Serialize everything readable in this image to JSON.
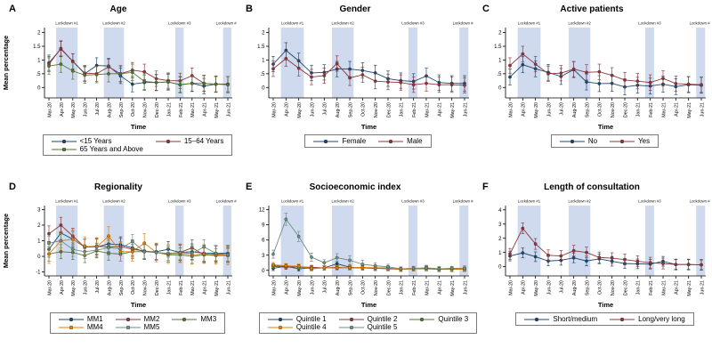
{
  "figure": {
    "x_axis_label": "Time",
    "y_axis_label": "Mean percentage",
    "months": [
      "Mar-20",
      "Apr-20",
      "May-20",
      "Jun-20",
      "Jul-20",
      "Aug-20",
      "Sep-20",
      "Oct-20",
      "Nov-20",
      "Dec-20",
      "Jan-21",
      "Feb-21",
      "Mar-21",
      "Apr-21",
      "May-21",
      "Jun-21"
    ],
    "lockdowns": [
      {
        "label": "Lockdown #1",
        "from": 0.6,
        "to": 2.4
      },
      {
        "label": "Lockdown #2",
        "from": 4.6,
        "to": 6.3
      },
      {
        "label": "Lockdown #3",
        "from": 10.6,
        "to": 11.3
      },
      {
        "label": "Lockdown #4",
        "from": 14.6,
        "to": 15.3
      }
    ],
    "band_color": "#cfdaee",
    "axis_color": "#000000",
    "palette": {
      "navy": "#1a476f",
      "maroon": "#90353b",
      "olive": "#55752f",
      "orange": "#e37e00",
      "teal": "#6e8e84"
    }
  },
  "chart_data": [
    {
      "type": "line",
      "panel_letter": "A",
      "title": "Age",
      "xlabel": "Time",
      "ylabel": "Mean percentage",
      "ylim": [
        -0.38,
        2.18
      ],
      "yticks": [
        0,
        0.5,
        1,
        1.5,
        2
      ],
      "ytick_labels": [
        "0",
        ".5",
        "1",
        "1.5",
        "2"
      ],
      "legend_columns": 2,
      "series": [
        {
          "name": "<15 Years",
          "color": "#1a476f",
          "err": 0.28,
          "values": [
            0.9,
            1.4,
            0.95,
            0.5,
            0.8,
            0.78,
            0.42,
            0.12,
            0.18,
            0.18,
            0.2,
            0.1,
            0.15,
            0.05,
            0.12,
            0.12
          ]
        },
        {
          "name": "15–64 Years",
          "color": "#90353b",
          "err": 0.28,
          "values": [
            0.85,
            1.42,
            0.95,
            0.52,
            0.5,
            0.75,
            0.5,
            0.63,
            0.57,
            0.32,
            0.25,
            0.24,
            0.43,
            0.15,
            0.12,
            0.12
          ]
        },
        {
          "name": "65 Years and Above",
          "color": "#55752f",
          "err": 0.3,
          "values": [
            0.78,
            0.85,
            0.6,
            0.45,
            0.47,
            0.5,
            0.5,
            0.55,
            0.22,
            0.18,
            0.2,
            0.1,
            0.15,
            0.15,
            0.12,
            0.1
          ]
        }
      ]
    },
    {
      "type": "line",
      "panel_letter": "B",
      "title": "Gender",
      "xlabel": "Time",
      "ylabel": "",
      "ylim": [
        -0.38,
        2.18
      ],
      "yticks": [
        0,
        0.5,
        1,
        1.5,
        2
      ],
      "ytick_labels": [
        "0",
        ".5",
        "1",
        "1.5",
        "2"
      ],
      "legend_columns": 2,
      "series": [
        {
          "name": "Female",
          "color": "#1a476f",
          "err": 0.28,
          "values": [
            0.85,
            1.35,
            0.97,
            0.53,
            0.55,
            0.67,
            0.67,
            0.62,
            0.53,
            0.32,
            0.25,
            0.22,
            0.42,
            0.18,
            0.15,
            0.15
          ]
        },
        {
          "name": "Male",
          "color": "#90353b",
          "err": 0.28,
          "values": [
            0.68,
            1.05,
            0.7,
            0.38,
            0.43,
            0.87,
            0.35,
            0.46,
            0.23,
            0.2,
            0.18,
            0.1,
            0.15,
            0.1,
            0.1,
            0.08
          ]
        }
      ]
    },
    {
      "type": "line",
      "panel_letter": "C",
      "title": "Active patients",
      "xlabel": "Time",
      "ylabel": "",
      "ylim": [
        -0.38,
        2.18
      ],
      "yticks": [
        0,
        0.5,
        1,
        1.5,
        2
      ],
      "ytick_labels": [
        "0",
        ".5",
        "1",
        "1.5",
        "2"
      ],
      "legend_columns": 2,
      "series": [
        {
          "name": "No",
          "color": "#1a476f",
          "err": 0.29,
          "values": [
            0.38,
            0.83,
            0.68,
            0.55,
            0.4,
            0.65,
            0.2,
            0.14,
            0.15,
            0.02,
            0.08,
            0.05,
            0.12,
            0.03,
            0.1,
            0.08
          ]
        },
        {
          "name": "Yes",
          "color": "#90353b",
          "err": 0.28,
          "values": [
            0.8,
            1.22,
            0.85,
            0.5,
            0.52,
            0.67,
            0.55,
            0.57,
            0.44,
            0.27,
            0.23,
            0.18,
            0.33,
            0.14,
            0.12,
            0.1
          ]
        }
      ]
    },
    {
      "type": "line",
      "panel_letter": "D",
      "title": "Regionality",
      "xlabel": "Time",
      "ylabel": "Mean percentage",
      "ylim": [
        -1.25,
        3.25
      ],
      "yticks": [
        -1,
        0,
        1,
        2,
        3
      ],
      "ytick_labels": [
        "-1",
        "0",
        "1",
        "2",
        "3"
      ],
      "legend_columns": 3,
      "series": [
        {
          "name": "MM1",
          "color": "#1a476f",
          "err": 0.5,
          "values": [
            0.45,
            1.5,
            1.1,
            0.6,
            0.6,
            0.8,
            0.75,
            0.55,
            0.3,
            0.3,
            0.45,
            0.25,
            0.3,
            0.2,
            0.2,
            0.2
          ]
        },
        {
          "name": "MM2",
          "color": "#90353b",
          "err": 0.5,
          "values": [
            1.45,
            2.0,
            1.3,
            0.6,
            0.65,
            0.6,
            0.65,
            0.45,
            0.35,
            0.25,
            0.15,
            0.25,
            0.55,
            0.1,
            0.15,
            0.1
          ]
        },
        {
          "name": "MM3",
          "color": "#55752f",
          "err": 0.45,
          "values": [
            0.15,
            0.3,
            0.25,
            0.05,
            0.35,
            0.2,
            0.15,
            0.3,
            0.3,
            0.25,
            0.1,
            0.1,
            0.0,
            0.1,
            0.05,
            0.05
          ]
        },
        {
          "name": "MM4",
          "color": "#e37e00",
          "err": 0.6,
          "values": [
            0.15,
            1.0,
            1.1,
            0.65,
            0.6,
            1.3,
            0.3,
            0.3,
            0.85,
            0.25,
            0.15,
            0.2,
            0.1,
            0.15,
            0.1,
            0.05
          ]
        },
        {
          "name": "MM5",
          "color": "#6e8e84",
          "err": 0.45,
          "values": [
            0.85,
            1.0,
            0.45,
            0.3,
            0.4,
            0.55,
            0.5,
            0.95,
            0.3,
            0.25,
            0.2,
            0.25,
            0.2,
            0.6,
            0.2,
            0.1
          ]
        }
      ]
    },
    {
      "type": "line",
      "panel_letter": "E",
      "title": "Socioeconomic index",
      "xlabel": "Time",
      "ylabel": "",
      "ylim": [
        -1.1,
        12.8
      ],
      "yticks": [
        0,
        3,
        6,
        9,
        12
      ],
      "ytick_labels": [
        "0",
        "3",
        "6",
        "9",
        "12"
      ],
      "legend_columns": 3,
      "series": [
        {
          "name": "Quintile 1",
          "color": "#1a476f",
          "err": 0.45,
          "values": [
            0.4,
            0.8,
            0.3,
            0.5,
            0.5,
            1.3,
            0.6,
            0.5,
            0.4,
            0.4,
            0.2,
            0.3,
            0.4,
            0.2,
            0.2,
            0.2
          ]
        },
        {
          "name": "Quintile 2",
          "color": "#90353b",
          "err": 0.4,
          "values": [
            0.8,
            0.6,
            0.7,
            0.6,
            0.5,
            0.6,
            0.5,
            0.5,
            0.4,
            0.3,
            0.2,
            0.3,
            0.4,
            0.2,
            0.2,
            0.2
          ]
        },
        {
          "name": "Quintile 3",
          "color": "#55752f",
          "err": 0.4,
          "values": [
            0.9,
            0.8,
            0.7,
            0.3,
            0.5,
            0.5,
            0.5,
            0.5,
            0.5,
            0.5,
            0.2,
            0.3,
            0.3,
            0.2,
            0.2,
            0.3
          ]
        },
        {
          "name": "Quintile 4",
          "color": "#e37e00",
          "err": 0.45,
          "values": [
            1.1,
            0.9,
            0.8,
            0.4,
            0.5,
            0.5,
            0.5,
            0.6,
            0.5,
            0.4,
            0.2,
            0.3,
            0.5,
            0.3,
            0.3,
            0.2
          ]
        },
        {
          "name": "Quintile 5",
          "color": "#6e8e84",
          "err": [
            0.8,
            1.2,
            1.0,
            0.8,
            0.6,
            0.8,
            0.9,
            0.8,
            0.6,
            0.5,
            0.4,
            0.4,
            0.5,
            0.4,
            0.4,
            0.5
          ],
          "values": [
            3.2,
            10.1,
            6.7,
            2.6,
            1.5,
            2.5,
            2.0,
            1.2,
            0.9,
            0.7,
            0.3,
            0.4,
            0.5,
            0.3,
            0.4,
            0.4
          ]
        }
      ]
    },
    {
      "type": "line",
      "panel_letter": "F",
      "title": "Length of consultation",
      "xlabel": "Time",
      "ylabel": "",
      "ylim": [
        -0.65,
        4.3
      ],
      "yticks": [
        0,
        1,
        2,
        3,
        4
      ],
      "ytick_labels": [
        "0",
        "1",
        "2",
        "3",
        "4"
      ],
      "legend_columns": 2,
      "series": [
        {
          "name": "Short/medium",
          "color": "#1a476f",
          "err": 0.34,
          "values": [
            0.75,
            0.97,
            0.7,
            0.4,
            0.45,
            0.62,
            0.4,
            0.55,
            0.38,
            0.22,
            0.2,
            0.18,
            0.38,
            0.15,
            0.15,
            0.13
          ]
        },
        {
          "name": "Long/very long",
          "color": "#90353b",
          "err": 0.38,
          "values": [
            0.9,
            2.7,
            1.6,
            0.8,
            0.75,
            1.12,
            1.0,
            0.65,
            0.6,
            0.5,
            0.38,
            0.28,
            0.22,
            0.15,
            0.15,
            0.13
          ]
        }
      ]
    }
  ]
}
